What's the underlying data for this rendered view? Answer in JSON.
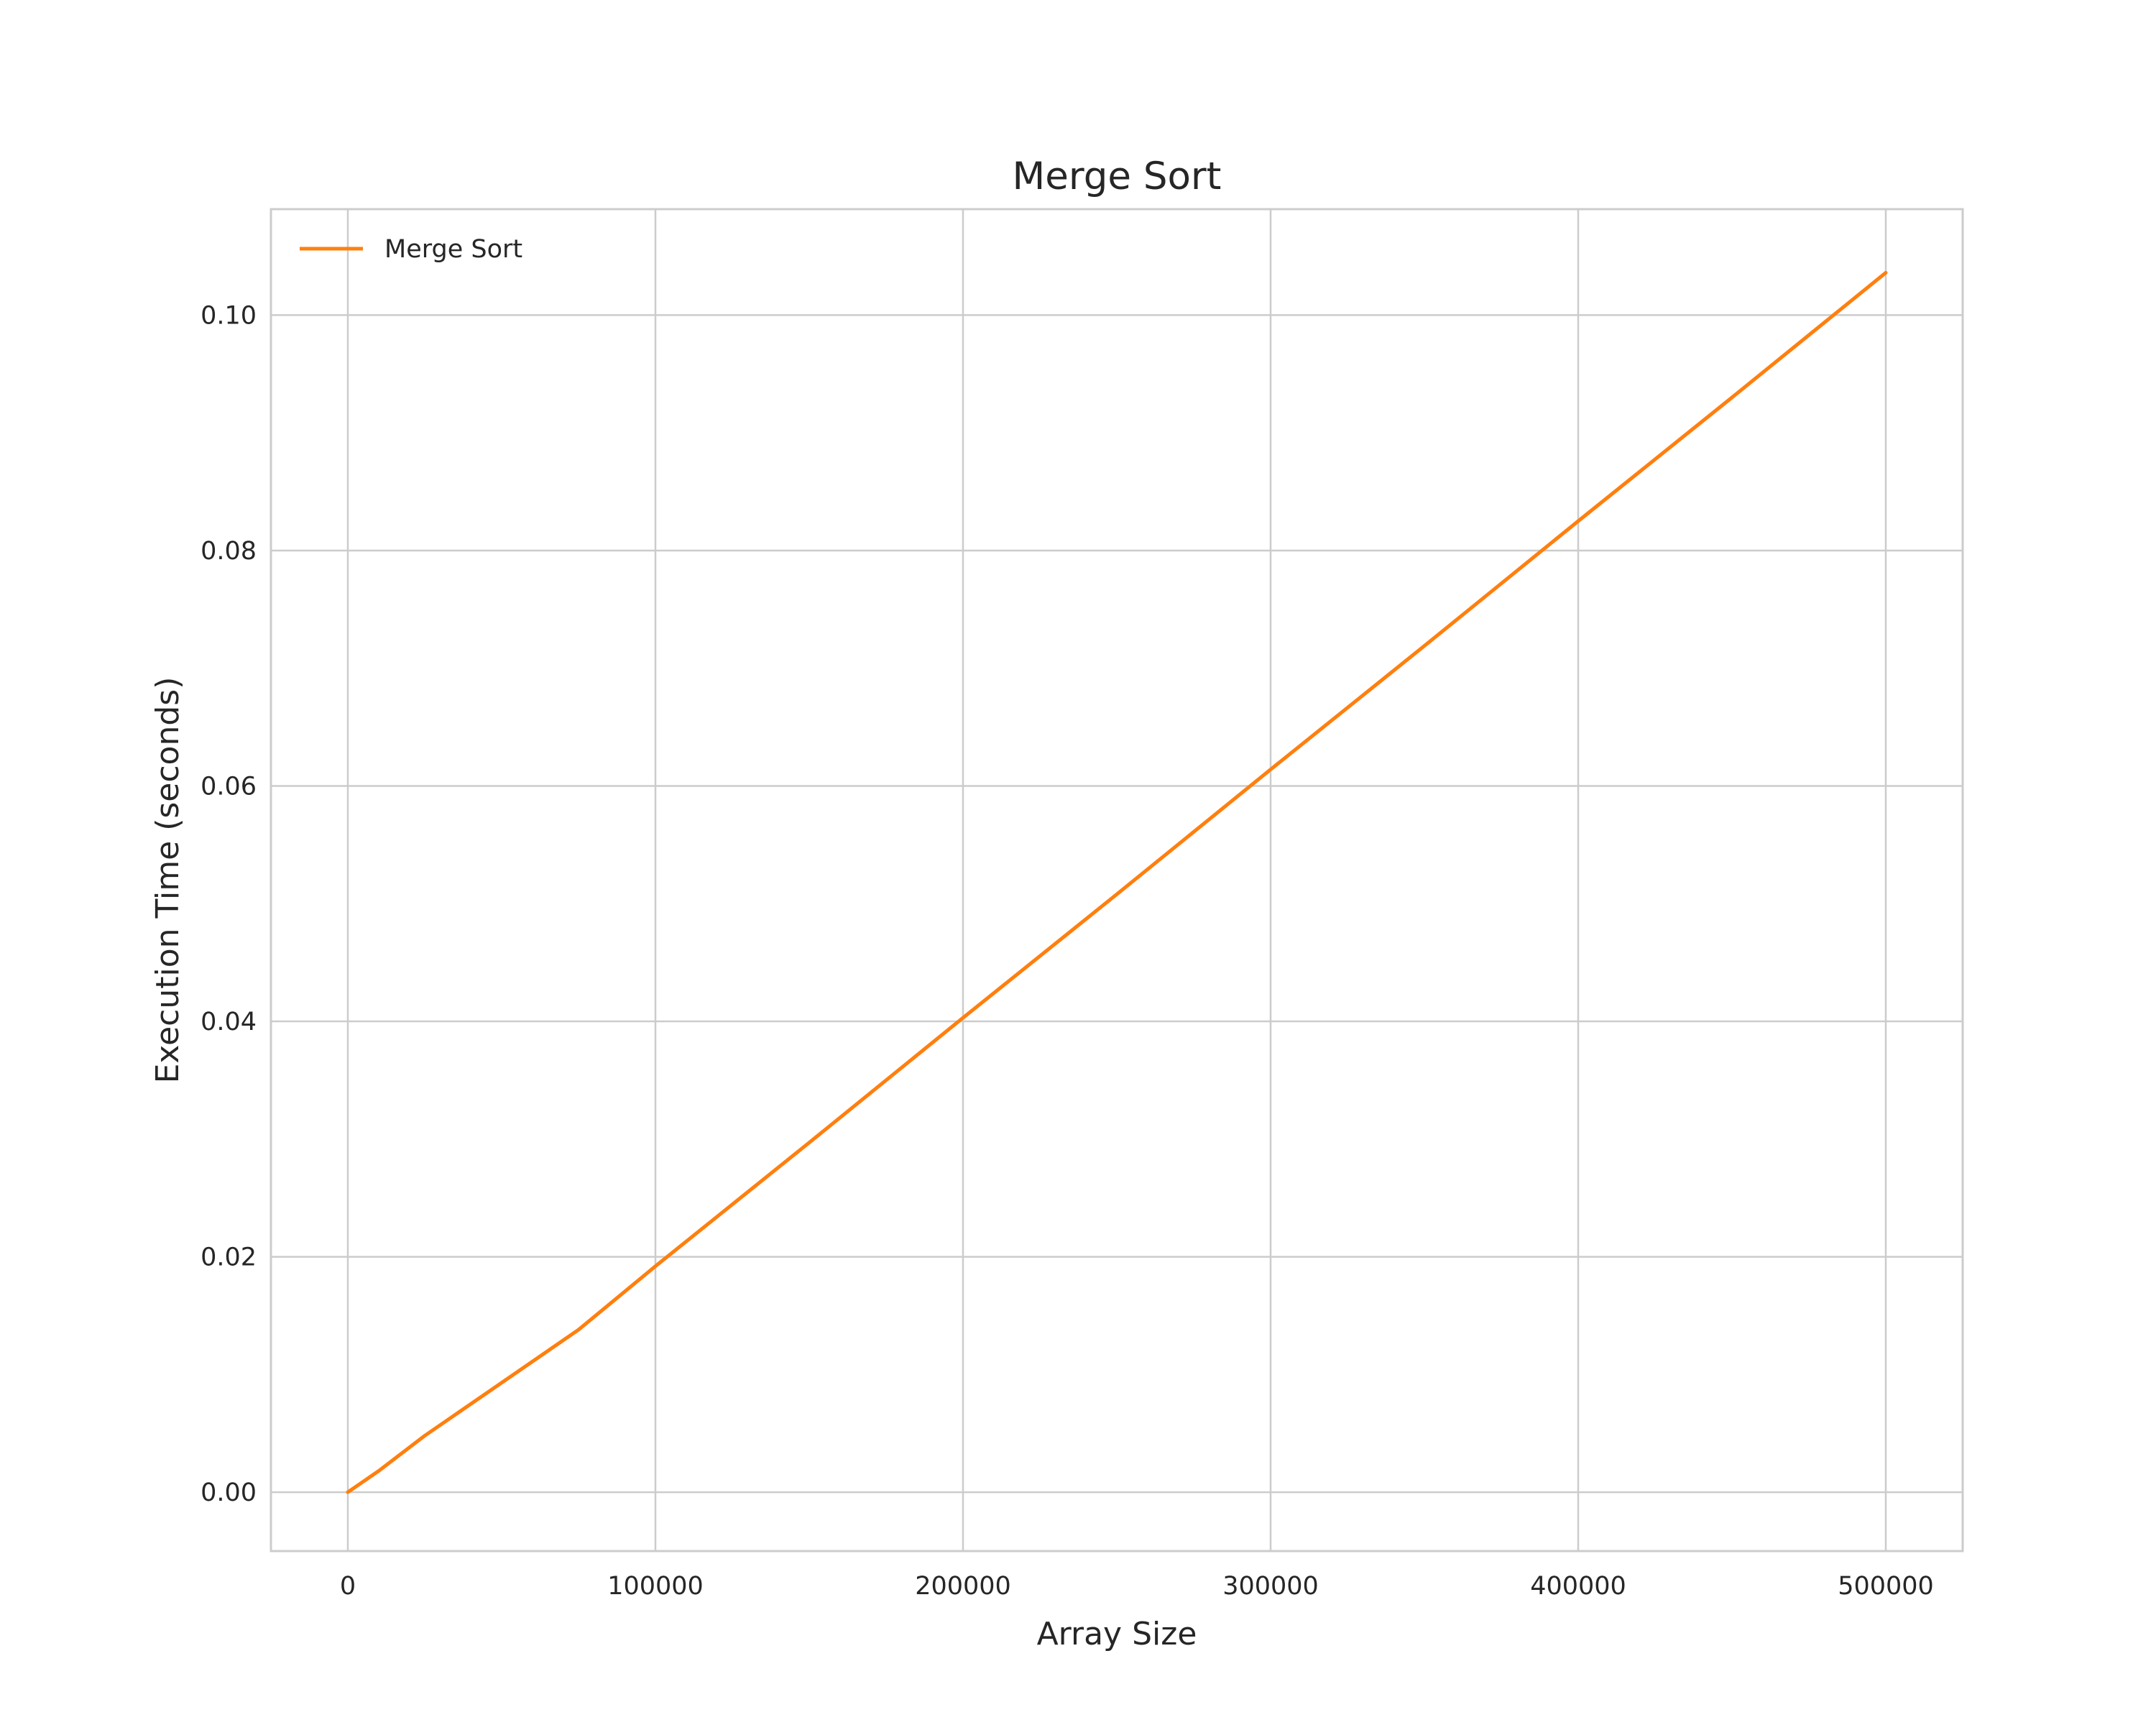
{
  "chart_data": {
    "type": "line",
    "title": "Merge Sort",
    "xlabel": "Array Size",
    "ylabel": "Execution Time (seconds)",
    "xlim": [
      -25000,
      525000
    ],
    "ylim": [
      -0.005,
      0.109
    ],
    "xticks": [
      0,
      100000,
      200000,
      300000,
      400000,
      500000
    ],
    "xtick_labels": [
      "0",
      "100000",
      "200000",
      "300000",
      "400000",
      "500000"
    ],
    "yticks": [
      0.0,
      0.02,
      0.04,
      0.06,
      0.08,
      0.1
    ],
    "ytick_labels": [
      "0.00",
      "0.02",
      "0.04",
      "0.06",
      "0.08",
      "0.10"
    ],
    "grid": true,
    "legend": {
      "position": "top-left"
    },
    "series": [
      {
        "name": "Merge Sort",
        "color": "#ff7f0e",
        "x": [
          0,
          10000,
          25000,
          50000,
          75000,
          100000,
          150000,
          200000,
          250000,
          300000,
          350000,
          400000,
          450000,
          500000
        ],
        "y": [
          0.0,
          0.0018,
          0.0048,
          0.0093,
          0.0138,
          0.0192,
          0.0297,
          0.0403,
          0.0508,
          0.0614,
          0.0719,
          0.0825,
          0.093,
          0.1036
        ]
      }
    ]
  }
}
